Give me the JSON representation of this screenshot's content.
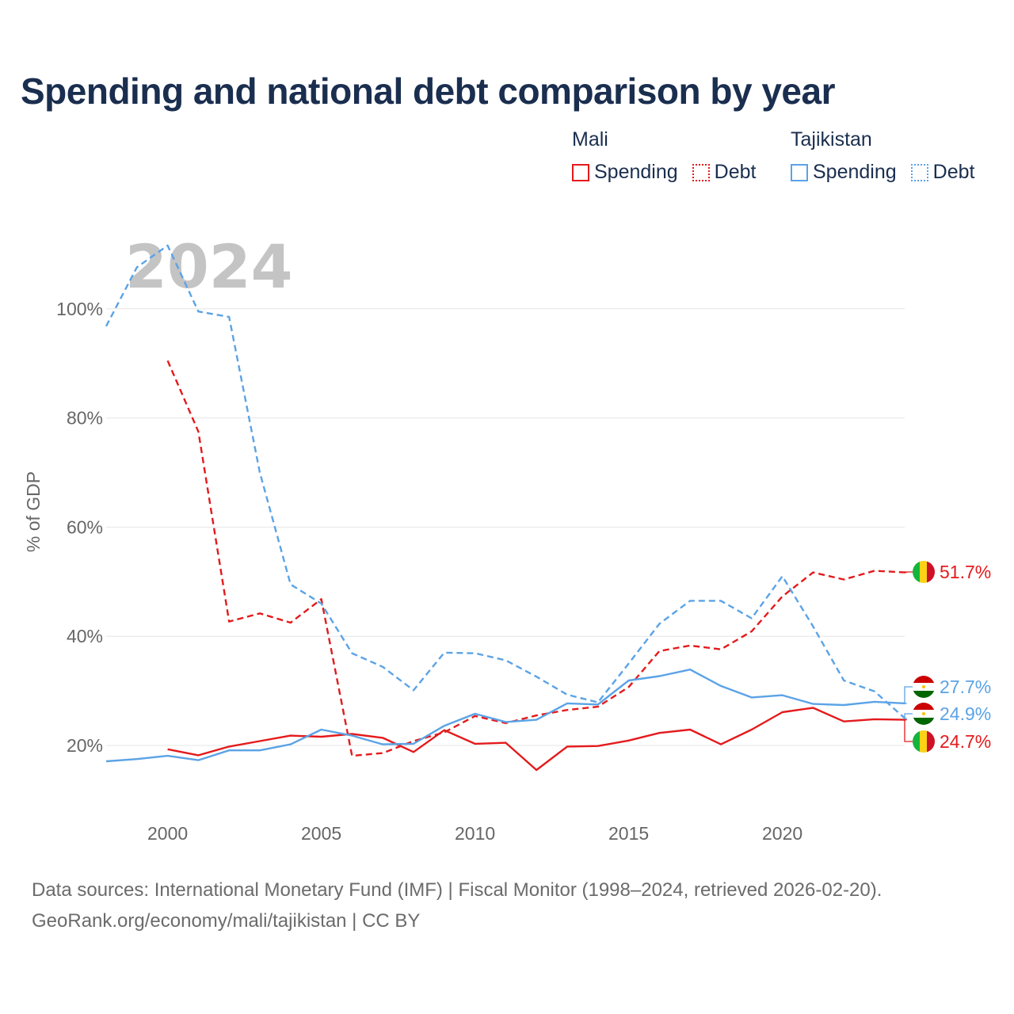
{
  "title": "Spending and national debt comparison by year",
  "legend": {
    "groups": [
      {
        "name": "Mali",
        "items": [
          "Spending",
          "Debt"
        ]
      },
      {
        "name": "Tajikistan",
        "items": [
          "Spending",
          "Debt"
        ]
      }
    ]
  },
  "colors": {
    "mali": "#e41a1c",
    "tajikistan": "#5ba3e6",
    "grid": "#e6e6e6"
  },
  "source": {
    "line1": "Data sources: International Monetary Fund (IMF) | Fiscal Monitor (1998–2024, retrieved 2026-02-20).",
    "line2": "GeoRank.org/economy/mali/tajikistan | CC BY"
  },
  "chart_data": {
    "type": "line",
    "title": "Spending and national debt comparison by year",
    "xlabel": "",
    "ylabel": "% of GDP",
    "xlim": [
      1998,
      2024
    ],
    "ylim": [
      0,
      115
    ],
    "y_ticks": [
      20,
      40,
      60,
      80,
      100
    ],
    "y_tick_labels": [
      "20%",
      "40%",
      "60%",
      "80%",
      "100%"
    ],
    "x_ticks": [
      2000,
      2005,
      2010,
      2015,
      2020
    ],
    "x_tick_labels": [
      "2000",
      "2005",
      "2010",
      "2015",
      "2020"
    ],
    "current_year": "2024",
    "grid": true,
    "series": [
      {
        "name": "Mali Spending",
        "country": "Mali",
        "metric": "Spending",
        "dash": "solid",
        "x": [
          2000,
          2001,
          2002,
          2003,
          2004,
          2005,
          2006,
          2007,
          2008,
          2009,
          2010,
          2011,
          2012,
          2013,
          2014,
          2015,
          2016,
          2017,
          2018,
          2019,
          2020,
          2021,
          2022,
          2023,
          2024
        ],
        "values": [
          19.3,
          18.2,
          19.8,
          20.8,
          21.8,
          21.6,
          22.1,
          21.4,
          18.8,
          22.8,
          20.3,
          20.5,
          15.5,
          19.8,
          19.9,
          20.9,
          22.3,
          22.9,
          20.2,
          22.9,
          26.1,
          26.9,
          24.4,
          24.8,
          24.7
        ]
      },
      {
        "name": "Mali Debt",
        "country": "Mali",
        "metric": "Debt",
        "dash": "dashed",
        "x": [
          2000,
          2001,
          2002,
          2003,
          2004,
          2005,
          2006,
          2007,
          2008,
          2009,
          2010,
          2011,
          2012,
          2013,
          2014,
          2015,
          2016,
          2017,
          2018,
          2019,
          2020,
          2021,
          2022,
          2023,
          2024
        ],
        "values": [
          90.5,
          77.5,
          42.7,
          44.2,
          42.5,
          46.8,
          18.1,
          18.6,
          20.8,
          22.4,
          25.4,
          24.1,
          25.5,
          26.5,
          27.1,
          30.7,
          37.3,
          38.3,
          37.6,
          40.9,
          47.3,
          51.7,
          50.4,
          52.0,
          51.7
        ]
      },
      {
        "name": "Tajikistan Spending",
        "country": "Tajikistan",
        "metric": "Spending",
        "dash": "solid",
        "x": [
          1998,
          1999,
          2000,
          2001,
          2002,
          2003,
          2004,
          2005,
          2006,
          2007,
          2008,
          2009,
          2010,
          2011,
          2012,
          2013,
          2014,
          2015,
          2016,
          2017,
          2018,
          2019,
          2020,
          2021,
          2022,
          2023,
          2024
        ],
        "values": [
          17.1,
          17.5,
          18.1,
          17.3,
          19.1,
          19.1,
          20.2,
          22.9,
          21.8,
          20.2,
          20.3,
          23.6,
          25.8,
          24.3,
          24.7,
          27.7,
          27.5,
          31.9,
          32.7,
          33.9,
          30.9,
          28.8,
          29.2,
          27.6,
          27.4,
          28.0,
          27.7
        ]
      },
      {
        "name": "Tajikistan Debt",
        "country": "Tajikistan",
        "metric": "Debt",
        "dash": "dashed",
        "x": [
          1998,
          1999,
          2000,
          2001,
          2002,
          2003,
          2004,
          2005,
          2006,
          2007,
          2008,
          2009,
          2010,
          2011,
          2012,
          2013,
          2014,
          2015,
          2016,
          2017,
          2018,
          2019,
          2020,
          2021,
          2022,
          2023,
          2024
        ],
        "values": [
          96.8,
          107.6,
          111.6,
          99.5,
          98.5,
          70.0,
          49.5,
          46.0,
          36.9,
          34.4,
          30.1,
          37.0,
          36.9,
          35.6,
          32.6,
          29.3,
          27.9,
          35.0,
          42.3,
          46.5,
          46.5,
          43.3,
          51.0,
          41.8,
          31.9,
          29.9,
          24.9
        ]
      }
    ],
    "end_labels": [
      {
        "series": "Mali Debt",
        "text": "51.7%",
        "value": 51.7
      },
      {
        "series": "Tajikistan Spending",
        "text": "27.7%",
        "value": 27.7
      },
      {
        "series": "Tajikistan Debt",
        "text": "24.9%",
        "value": 24.9
      },
      {
        "series": "Mali Spending",
        "text": "24.7%",
        "value": 24.7
      }
    ]
  }
}
